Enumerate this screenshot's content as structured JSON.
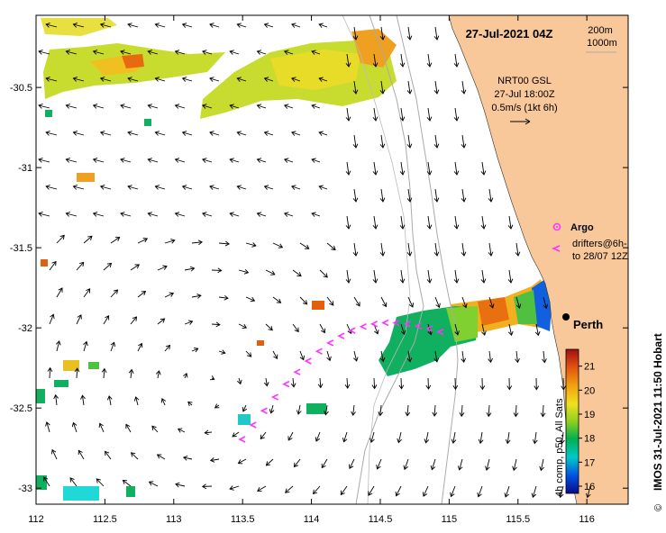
{
  "title": "27-Jul-2021 04Z",
  "isobath_legend": {
    "line1": "200m",
    "line2": "1000m"
  },
  "current_legend": {
    "source": "NRT00 GSL",
    "time": "27-Jul 18:00Z",
    "scale": "0.5m/s (1kt 6h)"
  },
  "markers_legend": {
    "argo_label": "Argo",
    "drifters_line1": "drifters@6h-",
    "drifters_line2": "to 28/07 12Z"
  },
  "city": {
    "name": "Perth",
    "lon": 115.86,
    "lat": -31.95
  },
  "credit": "IMOS 31-Jul-2021 11:50 Hobart",
  "copyright_symbol": "©",
  "colorbar": {
    "title": "4h comp, p50, All Sats",
    "min": 15.7,
    "max": 21.7,
    "ticks": [
      "21",
      "20",
      "19",
      "18",
      "17",
      "16"
    ]
  },
  "axes": {
    "x_ticks": [
      "112",
      "112.5",
      "113",
      "113.5",
      "114",
      "114.5",
      "115",
      "115.5",
      "116"
    ],
    "y_ticks": [
      "-30.5",
      "-31",
      "-31.5",
      "-32",
      "-32.5",
      "-33"
    ],
    "x_range": [
      112.0,
      116.3
    ],
    "y_range": [
      -33.1,
      -30.05
    ]
  },
  "colors": {
    "land": "#f8c89a",
    "isobath": "#aaaaaa",
    "drifter": "#ff33ff",
    "city_dot": "#000000"
  }
}
